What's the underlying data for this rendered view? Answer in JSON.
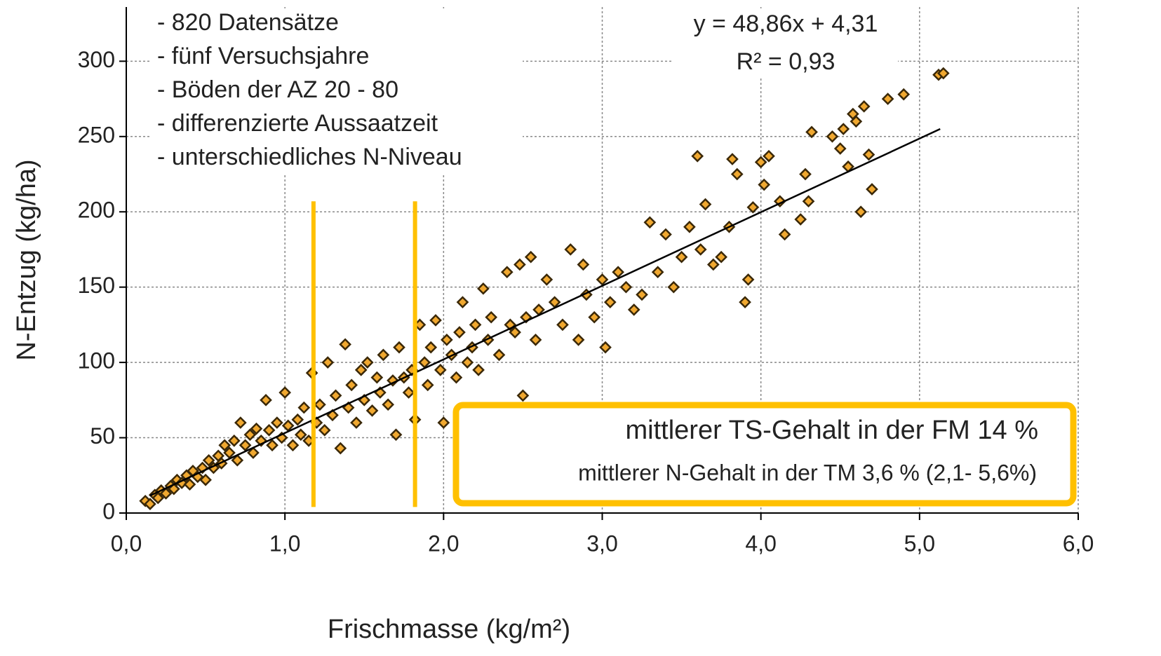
{
  "chart_data": {
    "type": "scatter",
    "xlabel": "Frischmasse (kg/m²)",
    "ylabel": "N-Entzug (kg/ha)",
    "xlim": [
      0,
      6
    ],
    "ylim": [
      0,
      336
    ],
    "xticks": [
      {
        "value": 0,
        "label": "0,0"
      },
      {
        "value": 1,
        "label": "1,0"
      },
      {
        "value": 2,
        "label": "2,0"
      },
      {
        "value": 3,
        "label": "3,0"
      },
      {
        "value": 4,
        "label": "4,0"
      },
      {
        "value": 5,
        "label": "5,0"
      },
      {
        "value": 6,
        "label": "6,0"
      }
    ],
    "yticks": [
      0,
      50,
      100,
      150,
      200,
      250,
      300
    ],
    "grid": true,
    "notes": [
      "- 820 Datensätze",
      "- fünf Versuchsjahre",
      "- Böden der AZ 20 - 80",
      "- differenzierte Aussaatzeit",
      "- unterschiedliches N-Niveau"
    ],
    "equation": "y = 48,86x + 4,31",
    "r_squared": "R² = 0,93",
    "trendline": {
      "color": "#000000",
      "x": [
        0.15,
        5.13
      ],
      "y": [
        11.6,
        255
      ]
    },
    "vlines": [
      {
        "color": "#ffc000",
        "x": 1.18,
        "y": [
          4,
          207
        ]
      },
      {
        "color": "#ffc000",
        "x": 1.82,
        "y": [
          4,
          207
        ]
      }
    ],
    "box": {
      "color": "#ffc000",
      "lines": [
        "mittlerer TS-Gehalt in der FM 14 %",
        "mittlerer N-Gehalt in der TM 3,6 % (2,1- 5,6%)"
      ]
    },
    "x": [
      0.12,
      0.15,
      0.18,
      0.2,
      0.22,
      0.25,
      0.28,
      0.3,
      0.32,
      0.35,
      0.38,
      0.4,
      0.42,
      0.45,
      0.48,
      0.5,
      0.52,
      0.55,
      0.58,
      0.6,
      0.62,
      0.65,
      0.68,
      0.7,
      0.72,
      0.75,
      0.78,
      0.8,
      0.82,
      0.85,
      0.88,
      0.9,
      0.92,
      0.95,
      0.98,
      1.0,
      1.02,
      1.05,
      1.08,
      1.1,
      1.12,
      1.15,
      1.17,
      1.2,
      1.22,
      1.25,
      1.27,
      1.3,
      1.32,
      1.35,
      1.38,
      1.4,
      1.42,
      1.45,
      1.48,
      1.5,
      1.52,
      1.55,
      1.58,
      1.6,
      1.62,
      1.65,
      1.68,
      1.7,
      1.72,
      1.75,
      1.78,
      1.8,
      1.82,
      1.85,
      1.88,
      1.9,
      1.92,
      1.95,
      1.98,
      2.0,
      2.02,
      2.05,
      2.08,
      2.1,
      2.12,
      2.15,
      2.18,
      2.2,
      2.22,
      2.25,
      2.28,
      2.3,
      2.35,
      2.4,
      2.42,
      2.45,
      2.48,
      2.5,
      2.52,
      2.55,
      2.58,
      2.6,
      2.65,
      2.7,
      2.75,
      2.8,
      2.85,
      2.88,
      2.9,
      2.95,
      3.0,
      3.02,
      3.05,
      3.1,
      3.15,
      3.2,
      3.25,
      3.3,
      3.35,
      3.4,
      3.45,
      3.5,
      3.55,
      3.6,
      3.62,
      3.65,
      3.7,
      3.75,
      3.8,
      3.82,
      3.85,
      3.9,
      3.92,
      3.95,
      4.0,
      4.02,
      4.05,
      4.12,
      4.15,
      4.25,
      4.28,
      4.3,
      4.32,
      4.45,
      4.5,
      4.52,
      4.55,
      4.58,
      4.6,
      4.63,
      4.65,
      4.68,
      4.7,
      4.8,
      4.9,
      5.12,
      5.15
    ],
    "series": [
      {
        "color": "#f0a830",
        "values": [
          8,
          6,
          12,
          10,
          15,
          13,
          18,
          16,
          22,
          20,
          25,
          19,
          28,
          24,
          30,
          22,
          35,
          30,
          38,
          33,
          45,
          40,
          48,
          35,
          60,
          45,
          52,
          40,
          56,
          48,
          75,
          55,
          45,
          60,
          50,
          80,
          58,
          45,
          62,
          52,
          70,
          48,
          93,
          60,
          72,
          55,
          100,
          65,
          78,
          43,
          112,
          70,
          85,
          60,
          95,
          75,
          100,
          68,
          90,
          80,
          105,
          72,
          88,
          52,
          110,
          90,
          80,
          95,
          62,
          125,
          100,
          85,
          110,
          128,
          95,
          60,
          115,
          105,
          90,
          120,
          140,
          100,
          110,
          125,
          95,
          149,
          115,
          130,
          105,
          160,
          125,
          120,
          165,
          78,
          130,
          170,
          115,
          135,
          155,
          140,
          125,
          175,
          115,
          165,
          145,
          130,
          155,
          110,
          140,
          160,
          150,
          135,
          145,
          193,
          160,
          185,
          150,
          170,
          190,
          237,
          175,
          205,
          165,
          170,
          190,
          235,
          225,
          140,
          155,
          203,
          233,
          218,
          237,
          207,
          185,
          195,
          225,
          207,
          253,
          250,
          242,
          255,
          230,
          265,
          260,
          200,
          270,
          238,
          215,
          275,
          278,
          291,
          292
        ]
      }
    ]
  }
}
